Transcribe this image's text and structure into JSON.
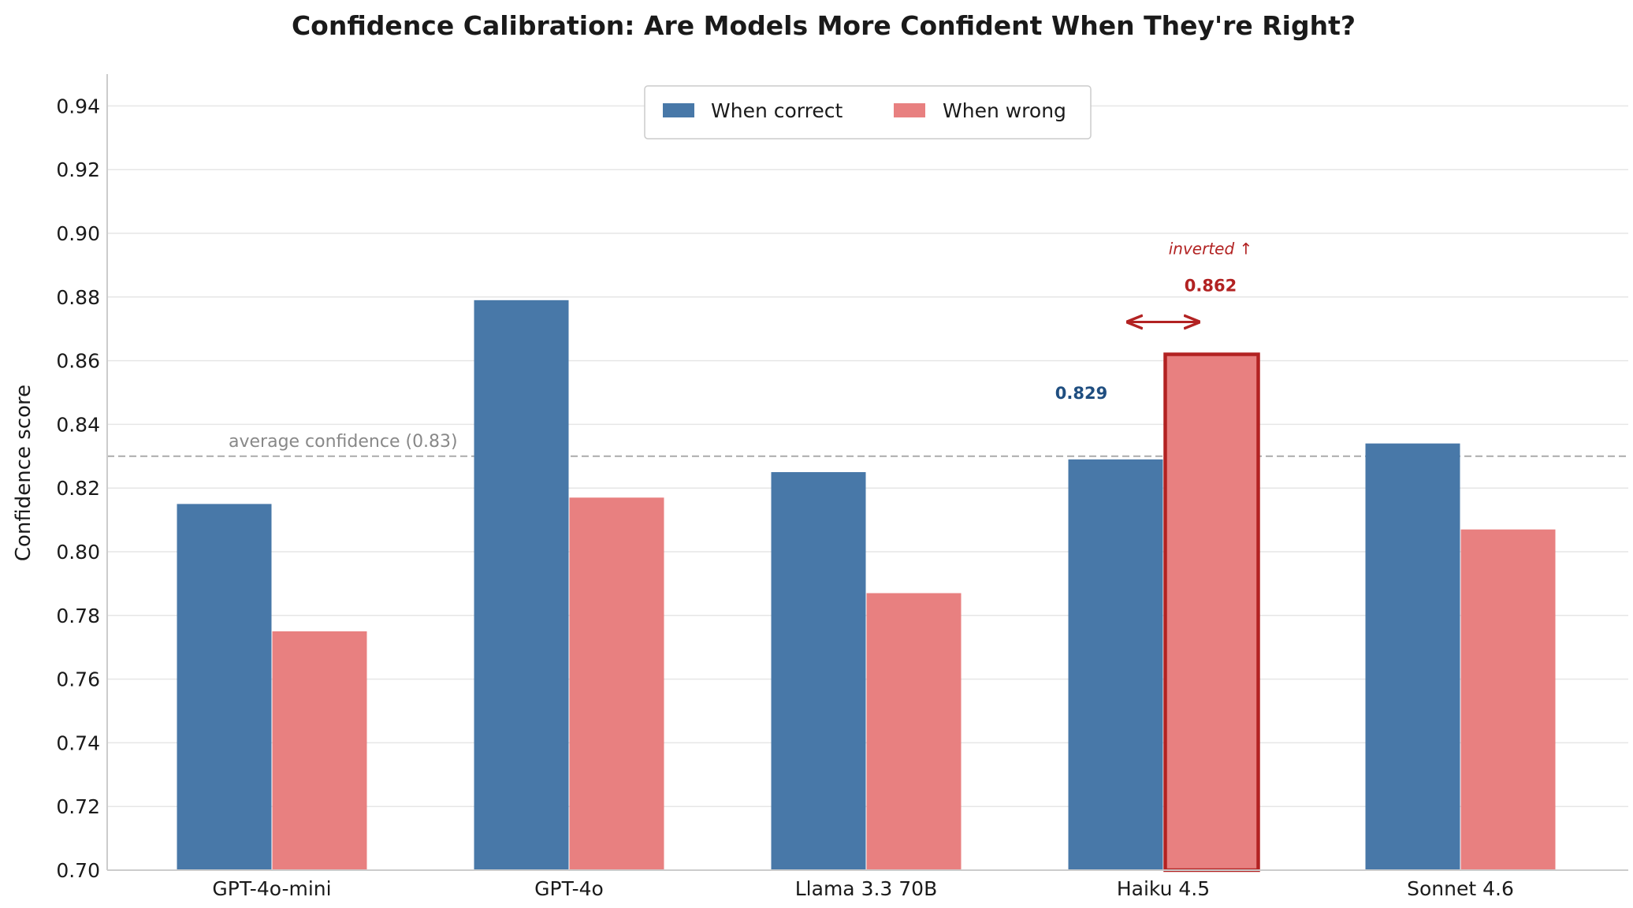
{
  "chart_data": {
    "type": "bar",
    "title": "Confidence Calibration: Are Models More Confident When They're Right?",
    "xlabel": "",
    "ylabel": "Confidence score",
    "ylim": [
      0.7,
      0.95
    ],
    "yticks": [
      "0.70",
      "0.72",
      "0.74",
      "0.76",
      "0.78",
      "0.80",
      "0.82",
      "0.84",
      "0.86",
      "0.88",
      "0.90",
      "0.92",
      "0.94"
    ],
    "categories": [
      "GPT-4o-mini",
      "GPT-4o",
      "Llama 3.3 70B",
      "Haiku 4.5",
      "Sonnet 4.6"
    ],
    "series": [
      {
        "name": "When correct",
        "color": "#4878a8",
        "values": [
          0.815,
          0.879,
          0.825,
          0.829,
          0.834
        ]
      },
      {
        "name": "When wrong",
        "color": "#e88080",
        "values": [
          0.775,
          0.817,
          0.787,
          0.862,
          0.807
        ]
      }
    ],
    "reference_line": {
      "value": 0.83,
      "label": "average confidence (0.83)",
      "color": "#b0b0b0"
    },
    "highlight": {
      "category": "Haiku 4.5",
      "correct_label": "0.829",
      "wrong_label": "0.862",
      "note": "inverted ↑",
      "correct_color": "#1f4e80",
      "wrong_color": "#b22222"
    },
    "grid": true,
    "legend_position": "top-center"
  }
}
